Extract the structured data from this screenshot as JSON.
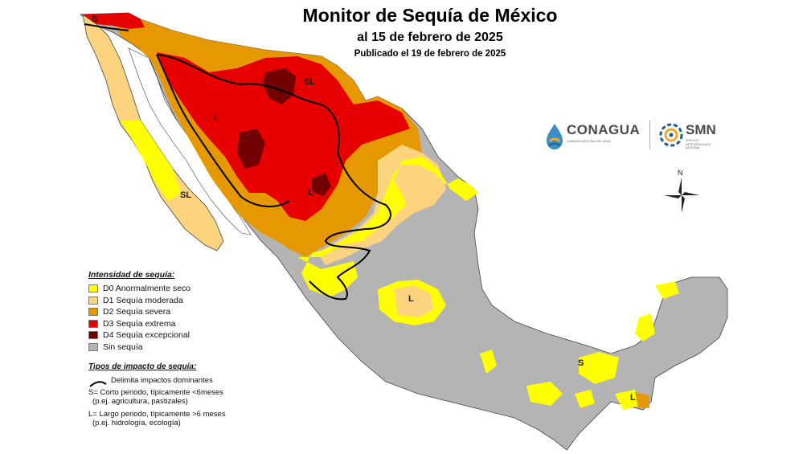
{
  "title": {
    "main": "Monitor de Sequía de México",
    "date": "al 15 de febrero de 2025",
    "published": "Publicado el 19 de febrero de 2025"
  },
  "legend": {
    "heading": "Intensidad de sequía:",
    "items": [
      {
        "label": "D0 Anormalmente seco",
        "color": "#ffff00"
      },
      {
        "label": "D1 Sequía moderada",
        "color": "#fcd37f"
      },
      {
        "label": "D2 Sequía severa",
        "color": "#e69800"
      },
      {
        "label": "D3 Sequía extrema",
        "color": "#e60000"
      },
      {
        "label": "D4 Sequía excepcional",
        "color": "#730000"
      },
      {
        "label": "Sin sequía",
        "color": "#b4b4b4"
      }
    ]
  },
  "impact_types": {
    "heading": "Tipos de impacto de sequía:",
    "line_label": "Delimita impactos dominantes",
    "short_term": "S= Corto periodo, típicamente <6meses",
    "short_term_example": "(p.ej. agricultura, pastizales)",
    "long_term": "L= Largo periodo, típicamente >6 meses",
    "long_term_example": "(p.ej. hidrología, ecología)"
  },
  "map_labels": {
    "s_nw": "S",
    "sl_north": "SL",
    "l_sonora": "L",
    "l_durango": "L",
    "sl_baja": "SL",
    "l_center": "L",
    "s_south": "S",
    "l_yucatan": "L"
  },
  "logos": {
    "conagua_name": "CONAGUA",
    "conagua_sub": "COMISIÓN NACIONAL DEL AGUA",
    "smn_name": "SMN",
    "smn_sub": "SERVICIO METEOROLÓGICO NACIONAL",
    "conagua_icon": "water-drop-icon",
    "smn_icon": "spiral-icon"
  },
  "compass": {
    "north": "N"
  }
}
